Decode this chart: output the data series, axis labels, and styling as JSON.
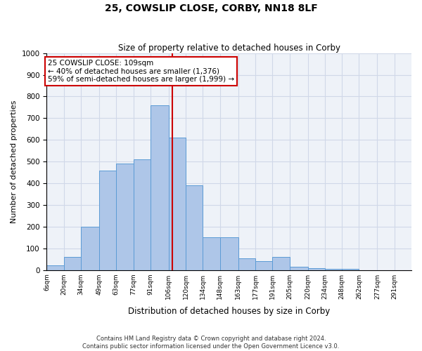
{
  "title": "25, COWSLIP CLOSE, CORBY, NN18 8LF",
  "subtitle": "Size of property relative to detached houses in Corby",
  "xlabel": "Distribution of detached houses by size in Corby",
  "ylabel": "Number of detached properties",
  "footer_line1": "Contains HM Land Registry data © Crown copyright and database right 2024.",
  "footer_line2": "Contains public sector information licensed under the Open Government Licence v3.0.",
  "annotation_title": "25 COWSLIP CLOSE: 109sqm",
  "annotation_line1": "← 40% of detached houses are smaller (1,376)",
  "annotation_line2": "59% of semi-detached houses are larger (1,999) →",
  "bin_edges": [
    6,
    20,
    34,
    49,
    63,
    77,
    91,
    106,
    120,
    134,
    148,
    163,
    177,
    191,
    205,
    220,
    234,
    248,
    262,
    277,
    291,
    305
  ],
  "bin_labels": [
    "6sqm",
    "20sqm",
    "34sqm",
    "49sqm",
    "63sqm",
    "77sqm",
    "91sqm",
    "106sqm",
    "120sqm",
    "134sqm",
    "148sqm",
    "163sqm",
    "177sqm",
    "191sqm",
    "205sqm",
    "220sqm",
    "234sqm",
    "248sqm",
    "262sqm",
    "277sqm",
    "291sqm"
  ],
  "bar_heights": [
    20,
    60,
    200,
    460,
    490,
    510,
    760,
    610,
    390,
    150,
    150,
    55,
    40,
    60,
    15,
    10,
    5,
    5,
    0,
    0,
    0
  ],
  "bar_color": "#aec6e8",
  "bar_edge_color": "#5b9bd5",
  "vline_color": "#cc0000",
  "vline_x": 109,
  "annotation_box_color": "#cc0000",
  "grid_color": "#d0d8e8",
  "background_color": "#eef2f8",
  "ylim": [
    0,
    1000
  ],
  "yticks": [
    0,
    100,
    200,
    300,
    400,
    500,
    600,
    700,
    800,
    900,
    1000
  ]
}
